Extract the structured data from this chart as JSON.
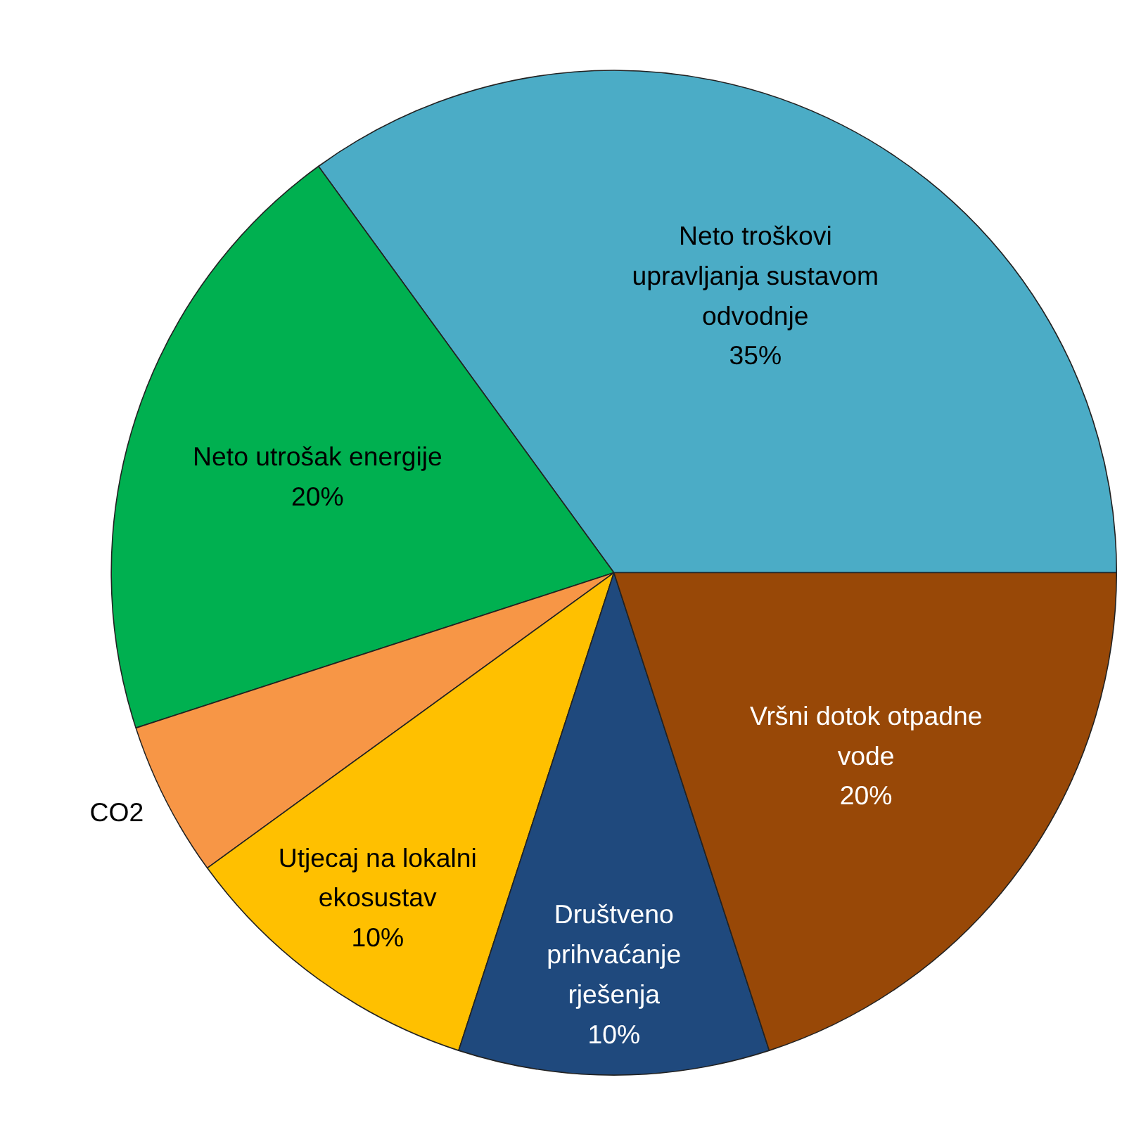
{
  "chart_data": {
    "type": "pie",
    "categories": [
      "Neto troškovi upravljanja sustavom odvodnje",
      "Neto utrošak energije",
      "CO2",
      "Utjecaj na lokalni ekosustav",
      "Društveno prihvaćanje rješenja",
      "Vršni dotok otpadne vode"
    ],
    "values": [
      35,
      20,
      5,
      10,
      10,
      20
    ],
    "value_labels": [
      "35%",
      "20%",
      null,
      "10%",
      "10%",
      "20%"
    ],
    "colors": [
      "#4bacc6",
      "#00b050",
      "#f79646",
      "#ffc000",
      "#1f497d",
      "#984807"
    ]
  }
}
